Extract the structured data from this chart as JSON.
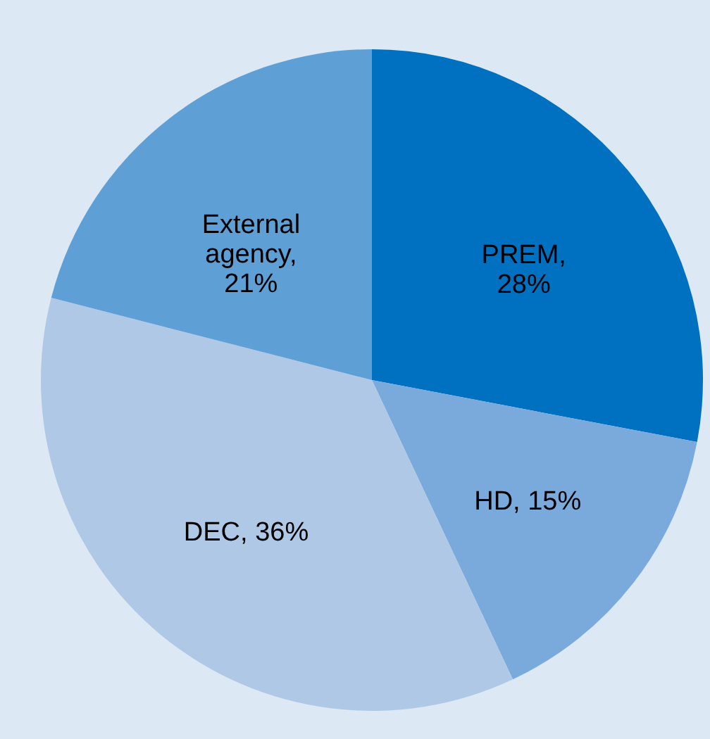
{
  "chart_data": {
    "type": "pie",
    "categories": [
      "PREM",
      "HD",
      "DEC",
      "External agency"
    ],
    "values": [
      28,
      15,
      36,
      21
    ],
    "colors": [
      "#0070c0",
      "#7aaadc",
      "#aec8e6",
      "#5e9fd6"
    ],
    "value_labels": [
      ", 28%",
      ", 15%",
      ", 36%",
      ", 21%"
    ]
  }
}
